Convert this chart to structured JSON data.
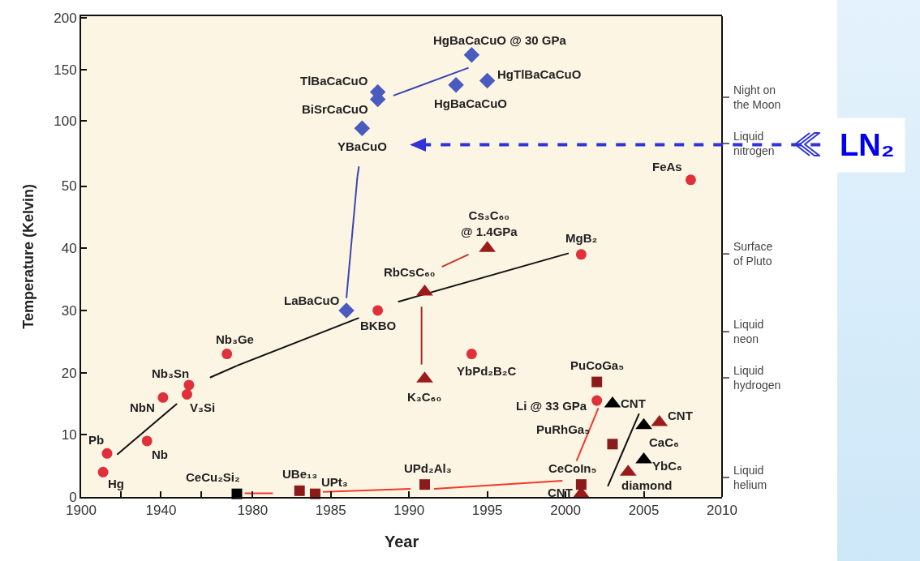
{
  "chart_data": [
    {
      "type": "scatter",
      "xlim": [
        1900,
        1978
      ],
      "xticks": [
        1900,
        {
          "value": 1920,
          "label": null
        },
        1940,
        {
          "value": 1960,
          "label": null
        }
      ],
      "ylim": [
        0,
        51.5
      ],
      "yticks": [
        0,
        10,
        20,
        30,
        40,
        50
      ],
      "ylabel": "Temperature (Kelvin)",
      "series": [
        {
          "type": "scatter",
          "marker": "circle",
          "color": "#e0303a",
          "x": [
            1911,
            1913,
            1933,
            1941,
            1953,
            1954,
            1973
          ],
          "values": [
            4,
            7,
            9,
            16,
            16.5,
            18,
            23
          ]
        },
        {
          "type": "line",
          "color": "#111111",
          "x": [
            1918,
            1948
          ],
          "values": [
            6.8,
            15
          ]
        },
        {
          "type": "line",
          "color": "#111111",
          "x": [
            1964.5,
            1978
          ],
          "values": [
            19.2,
            21.1
          ]
        }
      ],
      "annotations": [
        {
          "text": "Hg",
          "x": 1911,
          "y": 4
        },
        {
          "text": "Pb",
          "x": 1913,
          "y": 7
        },
        {
          "text": "Nb",
          "x": 1933,
          "y": 9
        },
        {
          "text": "NbN",
          "x": 1941,
          "y": 16
        },
        {
          "text": "V₃Si",
          "x": 1953,
          "y": 16.5
        },
        {
          "text": "Nb₃Sn",
          "x": 1954,
          "y": 18
        },
        {
          "text": "Nb₃Ge",
          "x": 1973,
          "y": 23
        }
      ]
    },
    {
      "type": "scatter",
      "xlim": [
        1979,
        2010
      ],
      "xticks": [
        1980,
        1985,
        1990,
        1995,
        2000,
        2005,
        2010
      ],
      "ylim": [
        0,
        51.5
      ],
      "xlabel": "Year",
      "series": [
        {
          "type": "line",
          "color": "#111111",
          "x": [
            1979,
            1986.8
          ],
          "values": [
            21.1,
            28.8
          ]
        },
        {
          "type": "line",
          "color": "#111111",
          "x": [
            1989.3,
            2000.2
          ],
          "values": [
            31.4,
            39.2
          ]
        },
        {
          "type": "line",
          "color": "#111111",
          "x": [
            2002.7,
            2004.7
          ],
          "values": [
            1.7,
            13.4
          ]
        },
        {
          "type": "line",
          "color": "#3a47b0",
          "x": [
            1986,
            1986.7
          ],
          "values": [
            32,
            51.5
          ]
        },
        {
          "type": "line",
          "color": "#a52a2a",
          "x": [
            1990.8,
            1990.8
          ],
          "values": [
            30.6,
            21.3
          ]
        },
        {
          "type": "line",
          "color": "#c0392b",
          "x": [
            1992.1,
            1993.8
          ],
          "values": [
            37,
            39
          ]
        },
        {
          "type": "line",
          "color": "#f03a2a",
          "x": [
            1979.5,
            1981.3
          ],
          "values": [
            0.6,
            0.6
          ]
        },
        {
          "type": "line",
          "color": "#f03a2a",
          "x": [
            1984.5,
            1990.1
          ],
          "values": [
            0.8,
            1.3
          ]
        },
        {
          "type": "line",
          "color": "#f03a2a",
          "x": [
            1991.6,
            1999.8
          ],
          "values": [
            1.3,
            2.6
          ]
        },
        {
          "type": "line",
          "color": "#f03a2a",
          "x": [
            2000.7,
            2002.1
          ],
          "values": [
            5.8,
            14.3
          ]
        },
        {
          "type": "scatter",
          "marker": "circle",
          "color": "#e0303a",
          "x": [
            1988,
            1994,
            2001,
            2002,
            2008
          ],
          "values": [
            30,
            23,
            39,
            15.5,
            51
          ]
        },
        {
          "type": "scatter",
          "marker": "diamond",
          "color": "#4a5bbf",
          "x": [
            1986
          ],
          "values": [
            30
          ]
        },
        {
          "type": "scatter",
          "marker": "triangle",
          "color": "#9b1b1b",
          "x": [
            1991,
            1991,
            1995,
            2006,
            2004,
            2001
          ],
          "values": [
            33,
            19,
            40,
            12,
            4,
            0.5
          ]
        },
        {
          "type": "scatter",
          "marker": "triangle",
          "color": "#000000",
          "x": [
            2003,
            2005,
            2005
          ],
          "values": [
            15,
            11.5,
            6
          ]
        },
        {
          "type": "scatter",
          "marker": "square",
          "color": "#8b1a1a",
          "x": [
            1983,
            1984,
            1991,
            2001,
            2003,
            2002
          ],
          "values": [
            1,
            0.5,
            2,
            2,
            8.5,
            18.5
          ]
        },
        {
          "type": "scatter",
          "marker": "square",
          "color": "#000000",
          "x": [
            1979
          ],
          "values": [
            0.5
          ]
        }
      ],
      "annotations": [
        {
          "text": "LaBaCuO",
          "x": 1986,
          "y": 30
        },
        {
          "text": "BKBO",
          "x": 1988,
          "y": 30
        },
        {
          "text": "RbCsC₆₀",
          "x": 1991,
          "y": 33
        },
        {
          "text": "Cs₃C₆₀\n@ 1.4GPa",
          "x": 1995,
          "y": 40
        },
        {
          "text": "K₃C₆₀",
          "x": 1991,
          "y": 19
        },
        {
          "text": "YbPd₂B₂C",
          "x": 1994,
          "y": 23
        },
        {
          "text": "MgB₂",
          "x": 2001,
          "y": 39
        },
        {
          "text": "FeAs",
          "x": 2008,
          "y": 51
        },
        {
          "text": "UBe₁₃",
          "x": 1983,
          "y": 1
        },
        {
          "text": "UPt₃",
          "x": 1984,
          "y": 0.5
        },
        {
          "text": "CeCu₂Si₂",
          "x": 1979,
          "y": 0.5
        },
        {
          "text": "UPd₂Al₃",
          "x": 1991,
          "y": 2
        },
        {
          "text": "PuCoGa₅",
          "x": 2002,
          "y": 18.5
        },
        {
          "text": "Li @ 33 GPa",
          "x": 2002,
          "y": 15.5
        },
        {
          "text": "CNT",
          "x": 2003,
          "y": 15
        },
        {
          "text": "PuRhGa₅",
          "x": 2003,
          "y": 8.5
        },
        {
          "text": "CaC₆",
          "x": 2005,
          "y": 11.5
        },
        {
          "text": "CNT",
          "x": 2006,
          "y": 12
        },
        {
          "text": "YbC₆",
          "x": 2005,
          "y": 6
        },
        {
          "text": "diamond",
          "x": 2004,
          "y": 4
        },
        {
          "text": "CeCoIn₅",
          "x": 2001,
          "y": 2
        },
        {
          "text": "CNT",
          "x": 2001,
          "y": 0.5
        },
        "Liquid helium",
        "Liquid hydrogen",
        "Liquid neon",
        "Surface of Pluto"
      ]
    },
    {
      "type": "scatter",
      "xlim": [
        1900,
        1978
      ],
      "ylim": [
        46,
        201.5
      ],
      "yticks": [
        100,
        150,
        200
      ]
    },
    {
      "type": "scatter",
      "xlim": [
        1979,
        2010
      ],
      "ylim": [
        46,
        201.5
      ],
      "ref_lines": [
        {
          "axis": "y",
          "value": 77,
          "label": "LN₂",
          "color": "#2f35d6",
          "line_style": "dashed"
        }
      ],
      "series": [
        {
          "type": "line",
          "color": "#3a47b0",
          "x": [
            1986.7,
            1986.8
          ],
          "values": [
            46,
            56
          ]
        },
        {
          "type": "line",
          "color": "#3a47b0",
          "x": [
            1989,
            1993.8
          ],
          "values": [
            124.6,
            151.5
          ]
        },
        {
          "type": "scatter",
          "marker": "diamond",
          "color": "#4a5bbf",
          "x": [
            1987,
            1988,
            1988,
            1993,
            1994,
            1995
          ],
          "values": [
            93,
            121,
            128,
            135,
            164,
            139
          ]
        }
      ],
      "annotations": [
        {
          "text": "YBaCuO",
          "x": 1987,
          "y": 93
        },
        {
          "text": "BiSrCaCuO",
          "x": 1988,
          "y": 121
        },
        {
          "text": "TlBaCaCuO",
          "x": 1988,
          "y": 128
        },
        {
          "text": "HgBaCaCuO",
          "x": 1993,
          "y": 135
        },
        {
          "text": "HgBaCaCuO @ 30 GPa",
          "x": 1994,
          "y": 164
        },
        {
          "text": "HgTlBaCaCuO",
          "x": 1995,
          "y": 139
        },
        "Liquid nitrogen",
        "Night on the Moon"
      ]
    }
  ]
}
